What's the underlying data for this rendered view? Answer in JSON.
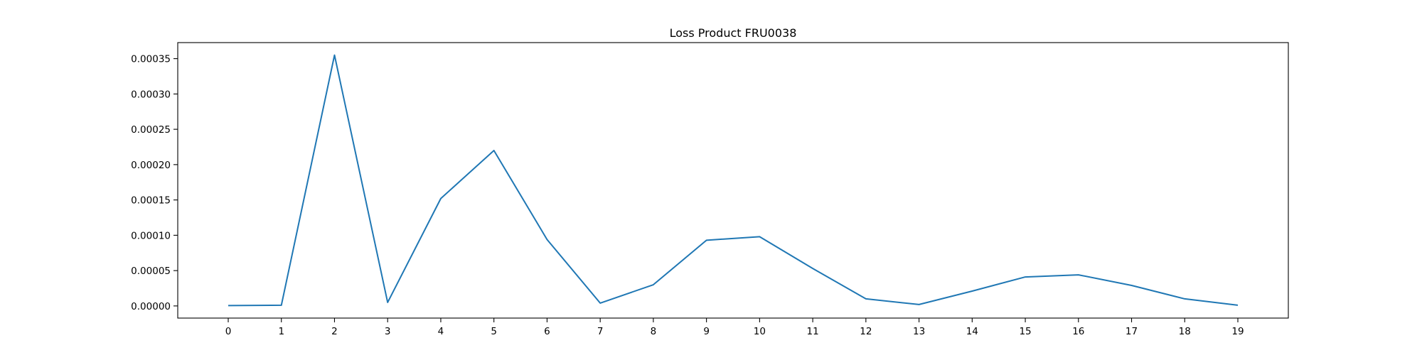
{
  "chart_data": {
    "type": "line",
    "title": "Loss Product FRU0038",
    "xlabel": "",
    "ylabel": "",
    "x": [
      0,
      1,
      2,
      3,
      4,
      5,
      6,
      7,
      8,
      9,
      10,
      11,
      12,
      13,
      14,
      15,
      16,
      17,
      18,
      19
    ],
    "x_tick_labels": [
      "0",
      "1",
      "2",
      "3",
      "4",
      "5",
      "6",
      "7",
      "8",
      "9",
      "10",
      "11",
      "12",
      "13",
      "14",
      "15",
      "16",
      "17",
      "18",
      "19"
    ],
    "y_tick_values": [
      0,
      5e-05,
      0.0001,
      0.00015,
      0.0002,
      0.00025,
      0.0003,
      0.00035
    ],
    "y_tick_labels": [
      "0.00000",
      "0.00005",
      "0.00010",
      "0.00015",
      "0.00020",
      "0.00025",
      "0.00030",
      "0.00035"
    ],
    "series": [
      {
        "color": "#1f77b4",
        "values": [
          5e-07,
          1e-06,
          0.000355,
          5e-06,
          0.000152,
          0.00022,
          9.4e-05,
          4e-06,
          3e-05,
          9.3e-05,
          9.8e-05,
          5.3e-05,
          1e-05,
          2e-06,
          2.1e-05,
          4.1e-05,
          4.4e-05,
          2.9e-05,
          1e-05,
          1e-06
        ]
      }
    ],
    "xlim": [
      -0.95,
      19.95
    ],
    "ylim": [
      -1.72e-05,
      0.0003727
    ],
    "grid": false,
    "legend": "none"
  }
}
